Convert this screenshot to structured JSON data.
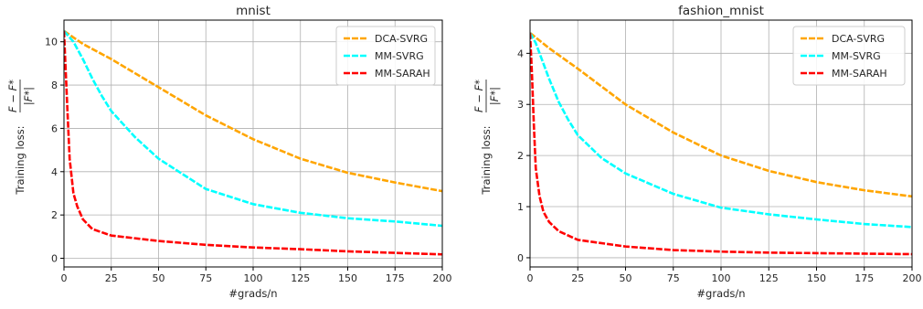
{
  "chart_data": [
    {
      "type": "line",
      "title": "mnist",
      "xlabel": "#grads/n",
      "ylabel_prefix": "Training loss:",
      "ylabel_num": "F − F*",
      "ylabel_den": "|F*|",
      "xlim": [
        0,
        200
      ],
      "ylim": [
        -0.4,
        11.0
      ],
      "xticks": [
        0,
        25,
        50,
        75,
        100,
        125,
        150,
        175,
        200
      ],
      "yticks": [
        0,
        2,
        4,
        6,
        8,
        10
      ],
      "grid": true,
      "legend_position": "top-right",
      "series": [
        {
          "name": "DCA-SVRG",
          "color": "#FFA500",
          "x": [
            0,
            10,
            25,
            50,
            75,
            100,
            125,
            150,
            175,
            200
          ],
          "y": [
            10.5,
            9.9,
            9.2,
            7.9,
            6.6,
            5.5,
            4.6,
            3.95,
            3.5,
            3.1
          ]
        },
        {
          "name": "MM-SVRG",
          "color": "#00FFFF",
          "x": [
            0,
            5,
            10,
            15,
            20,
            25,
            37.5,
            50,
            75,
            100,
            125,
            150,
            175,
            200
          ],
          "y": [
            10.5,
            10.0,
            9.2,
            8.3,
            7.5,
            6.8,
            5.6,
            4.6,
            3.2,
            2.5,
            2.1,
            1.85,
            1.7,
            1.5
          ]
        },
        {
          "name": "MM-SARAH",
          "color": "#FF0000",
          "x": [
            0,
            1,
            2,
            3,
            5,
            7,
            10,
            15,
            25,
            50,
            75,
            100,
            125,
            150,
            175,
            200
          ],
          "y": [
            10.5,
            8.5,
            6.5,
            4.6,
            3.0,
            2.4,
            1.8,
            1.35,
            1.05,
            0.8,
            0.62,
            0.5,
            0.42,
            0.32,
            0.25,
            0.18
          ]
        }
      ]
    },
    {
      "type": "line",
      "title": "fashion_mnist",
      "xlabel": "#grads/n",
      "ylabel_prefix": "Training loss:",
      "ylabel_num": "F − F*",
      "ylabel_den": "|F*|",
      "xlim": [
        0,
        200
      ],
      "ylim": [
        -0.18,
        4.65
      ],
      "xticks": [
        0,
        25,
        50,
        75,
        100,
        125,
        150,
        175,
        200
      ],
      "yticks": [
        0,
        1,
        2,
        3,
        4
      ],
      "grid": true,
      "legend_position": "top-right",
      "series": [
        {
          "name": "DCA-SVRG",
          "color": "#FFA500",
          "x": [
            0,
            10,
            25,
            50,
            75,
            100,
            125,
            150,
            175,
            200
          ],
          "y": [
            4.4,
            4.1,
            3.7,
            3.0,
            2.45,
            2.0,
            1.7,
            1.48,
            1.32,
            1.2
          ]
        },
        {
          "name": "MM-SVRG",
          "color": "#00FFFF",
          "x": [
            0,
            3,
            5,
            10,
            15,
            20,
            25,
            37.5,
            50,
            75,
            100,
            125,
            150,
            175,
            200
          ],
          "y": [
            4.4,
            4.2,
            4.0,
            3.5,
            3.05,
            2.7,
            2.4,
            1.95,
            1.65,
            1.25,
            0.98,
            0.85,
            0.75,
            0.66,
            0.6
          ]
        },
        {
          "name": "MM-SARAH",
          "color": "#FF0000",
          "x": [
            0,
            1,
            2,
            3,
            5,
            7,
            10,
            15,
            25,
            50,
            75,
            100,
            125,
            150,
            175,
            200
          ],
          "y": [
            4.4,
            3.6,
            2.6,
            1.75,
            1.2,
            0.9,
            0.7,
            0.52,
            0.35,
            0.22,
            0.15,
            0.12,
            0.1,
            0.09,
            0.08,
            0.07
          ]
        }
      ]
    }
  ]
}
